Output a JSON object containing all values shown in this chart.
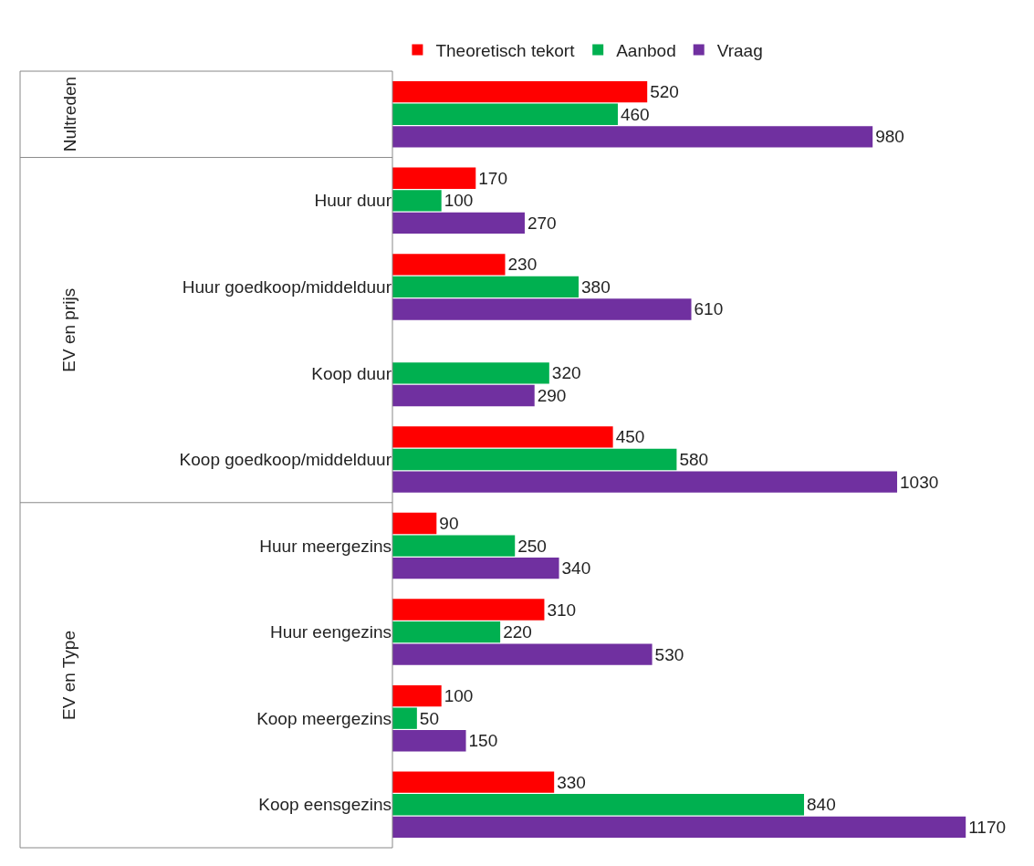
{
  "chart_data": {
    "type": "bar",
    "orientation": "horizontal",
    "categories": [
      null,
      "Huur duur",
      "Huur goedkoop/middelduur",
      "Koop duur",
      "Koop goedkoop/middelduur",
      "Huur meergezins",
      "Huur eengezins",
      "Koop meergezins",
      "Koop eensgezins"
    ],
    "series": [
      {
        "name": "Theoretisch tekort",
        "color": "#ff0000",
        "values": [
          520,
          170,
          230,
          null,
          450,
          90,
          310,
          100,
          330
        ]
      },
      {
        "name": "Aanbod",
        "color": "#00b050",
        "values": [
          460,
          100,
          380,
          320,
          580,
          250,
          220,
          50,
          840
        ]
      },
      {
        "name": "Vraag",
        "color": "#7030a0",
        "values": [
          980,
          270,
          610,
          290,
          1030,
          340,
          530,
          150,
          1170
        ]
      }
    ],
    "data_labels": true,
    "legend": "top",
    "annotations": [
      "Nultreden",
      "EV en prijs",
      "EV en Type"
    ]
  }
}
